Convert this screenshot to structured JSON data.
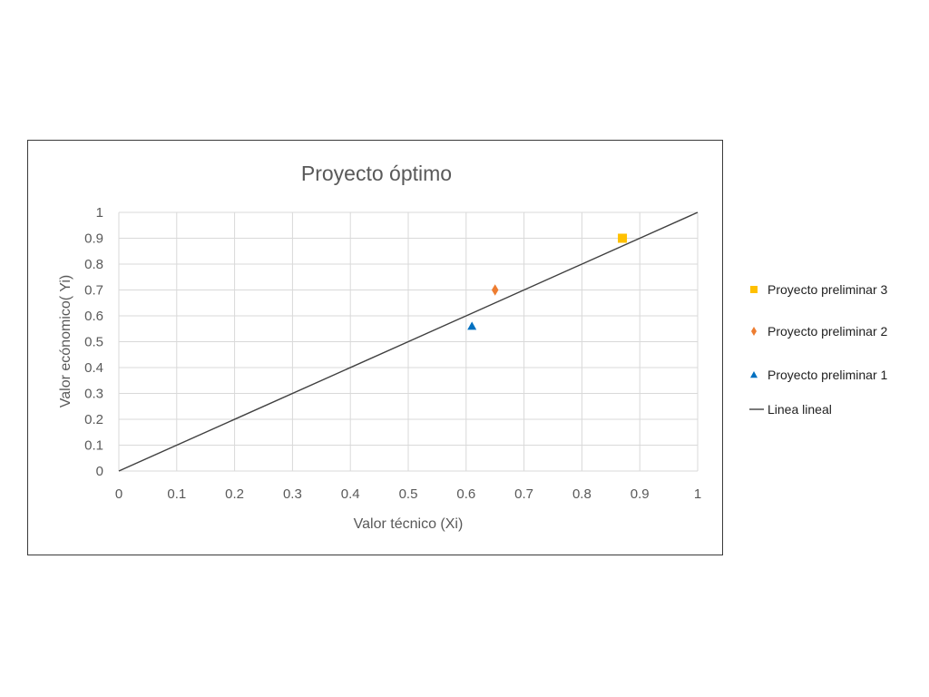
{
  "chart_data": {
    "type": "scatter",
    "title": "Proyecto óptimo",
    "xlabel": "Valor técnico (Xi)",
    "ylabel": "Valor ecónomico( Yi)",
    "xlim": [
      0,
      1
    ],
    "ylim": [
      0,
      1
    ],
    "x_ticks": [
      "0",
      "0.1",
      "0.2",
      "0.3",
      "0.4",
      "0.5",
      "0.6",
      "0.7",
      "0.8",
      "0.9",
      "1"
    ],
    "y_ticks": [
      "0",
      "0.1",
      "0.2",
      "0.3",
      "0.4",
      "0.5",
      "0.6",
      "0.7",
      "0.8",
      "0.9",
      "1"
    ],
    "grid": true,
    "legend_position": "right",
    "series": [
      {
        "name": "Proyecto preliminar 3",
        "marker": "square",
        "color": "#FFC000",
        "points": [
          [
            0.87,
            0.9
          ]
        ]
      },
      {
        "name": "Proyecto preliminar 2",
        "marker": "diamond",
        "color": "#ED7D31",
        "points": [
          [
            0.65,
            0.7
          ]
        ]
      },
      {
        "name": "Proyecto preliminar 1",
        "marker": "triangle",
        "color": "#0070C0",
        "points": [
          [
            0.61,
            0.56
          ]
        ]
      },
      {
        "name": "Linea lineal",
        "marker": "line",
        "color": "#404040",
        "points": [
          [
            0,
            0
          ],
          [
            1,
            1
          ]
        ]
      }
    ]
  }
}
